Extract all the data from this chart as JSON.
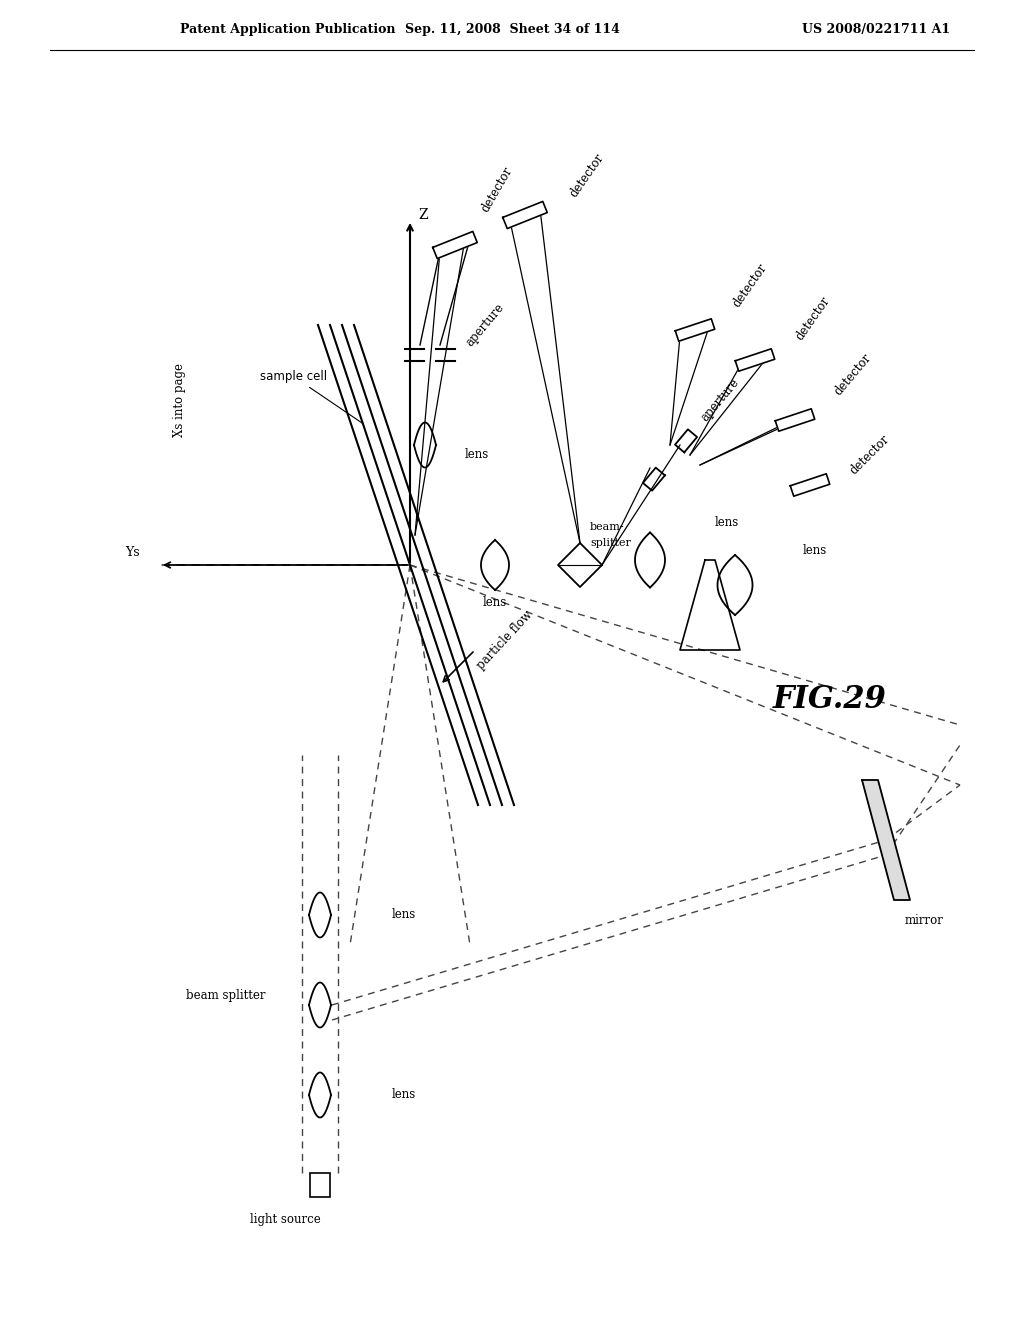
{
  "title_left": "Patent Application Publication",
  "title_mid": "Sep. 11, 2008  Sheet 34 of 114",
  "title_right": "US 2008/0221711 A1",
  "fig_label": "FIG.29",
  "background": "#ffffff",
  "line_color": "#000000",
  "dashed_color": "#555555"
}
